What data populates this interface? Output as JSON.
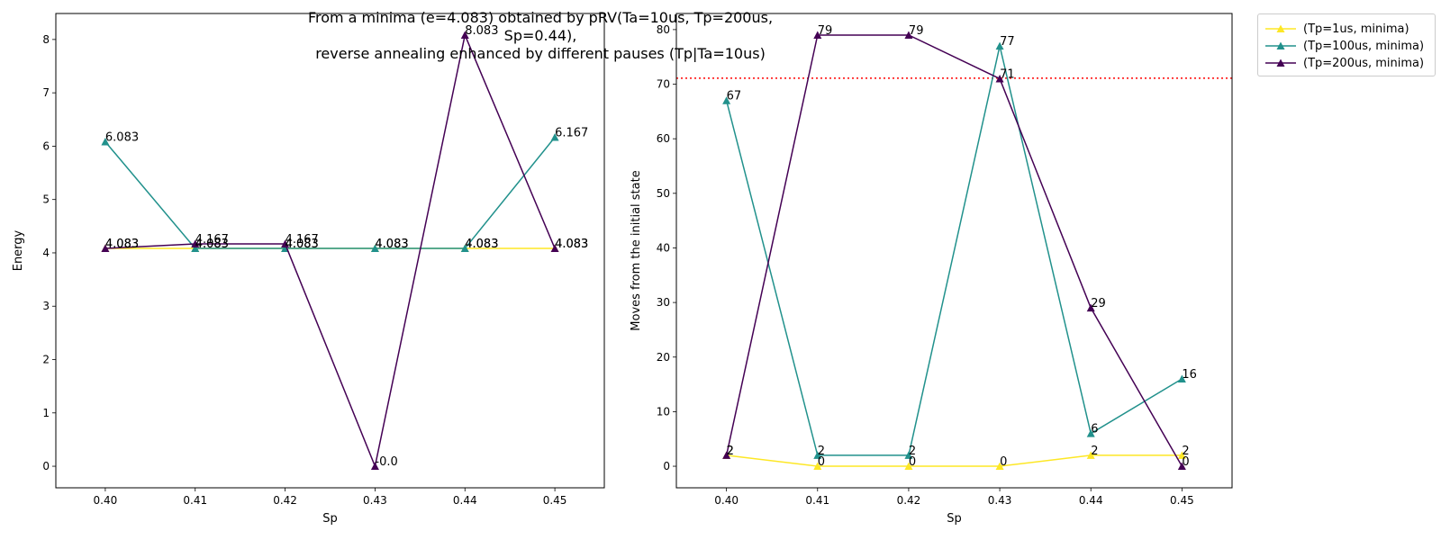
{
  "figure": {
    "suptitle_line1": "From a minima (e=4.083) obtained by pRV(Ta=10us, Tp=200us, Sp=0.44),",
    "suptitle_line2": "reverse annealing enhanced by different pauses (Tp|Ta=10us)"
  },
  "legend": {
    "placement": "outside-top-right",
    "entries": [
      "(Tp=1us, minima)",
      "(Tp=100us, minima)",
      "(Tp=200us, minima)"
    ]
  },
  "colors": {
    "series_1": "#fde725",
    "series_2": "#21918c",
    "series_3": "#440154",
    "reference_line": "#ff0000"
  },
  "chart_data": [
    {
      "type": "line",
      "xlabel": "Sp",
      "ylabel": "Energy",
      "x": [
        0.4,
        0.41,
        0.42,
        0.43,
        0.44,
        0.45
      ],
      "x_tick_labels": [
        "0.40",
        "0.41",
        "0.42",
        "0.43",
        "0.44",
        "0.45"
      ],
      "y_ticks": [
        0,
        1,
        2,
        3,
        4,
        5,
        6,
        7,
        8
      ],
      "xlim": [
        0.3945,
        0.4555
      ],
      "ylim": [
        -0.404,
        8.487
      ],
      "grid": false,
      "series": [
        {
          "name": "(Tp=1us, minima)",
          "values": [
            4.083,
            4.083,
            4.083,
            4.083,
            4.083,
            4.083
          ],
          "labels": [
            "4.083",
            "4.083",
            "4.083",
            "4.083",
            "4.083",
            "4.083"
          ]
        },
        {
          "name": "(Tp=100us, minima)",
          "values": [
            6.083,
            4.083,
            4.083,
            4.083,
            4.083,
            6.167
          ],
          "labels": [
            "6.083",
            "4.083",
            "4.083",
            "4.083",
            "4.083",
            "6.167"
          ]
        },
        {
          "name": "(Tp=200us, minima)",
          "values": [
            4.083,
            4.167,
            4.167,
            0.0,
            8.083,
            4.083
          ],
          "labels": [
            "4.083",
            "4.167",
            "4.167",
            "-0.0",
            "8.083",
            "4.083"
          ]
        }
      ]
    },
    {
      "type": "line",
      "xlabel": "Sp",
      "ylabel": "Moves from the initial state",
      "x": [
        0.4,
        0.41,
        0.42,
        0.43,
        0.44,
        0.45
      ],
      "x_tick_labels": [
        "0.40",
        "0.41",
        "0.42",
        "0.43",
        "0.44",
        "0.45"
      ],
      "y_ticks": [
        0,
        10,
        20,
        30,
        40,
        50,
        60,
        70,
        80
      ],
      "xlim": [
        0.3945,
        0.4555
      ],
      "ylim": [
        -3.95,
        82.95
      ],
      "grid": false,
      "hline": {
        "y": 71.1,
        "style": "dotted"
      },
      "series": [
        {
          "name": "(Tp=1us, minima)",
          "values": [
            2,
            0,
            0,
            0,
            2,
            2
          ],
          "labels": [
            "2",
            "0",
            "0",
            "0",
            "2",
            "2"
          ]
        },
        {
          "name": "(Tp=100us, minima)",
          "values": [
            67,
            2,
            2,
            77,
            6,
            16
          ],
          "labels": [
            "67",
            "2",
            "2",
            "77",
            "6",
            "16"
          ]
        },
        {
          "name": "(Tp=200us, minima)",
          "values": [
            2,
            79,
            79,
            71,
            29,
            0
          ],
          "labels": [
            "2",
            "79",
            "79",
            "71",
            "29",
            "0"
          ]
        }
      ]
    }
  ]
}
